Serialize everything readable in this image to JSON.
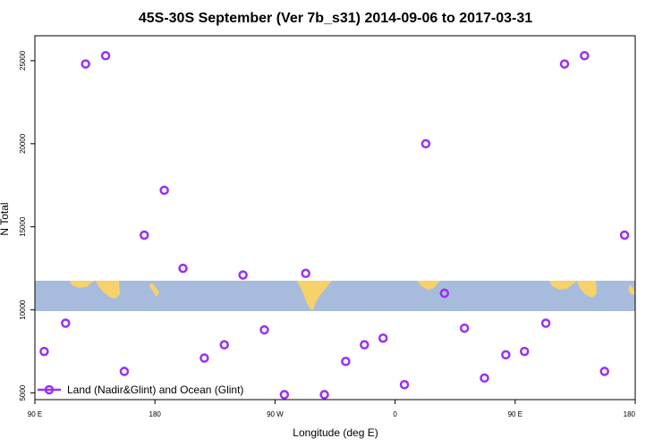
{
  "chart_data": {
    "type": "scatter",
    "title": "45S-30S September (Ver 7b_s31)   2014-09-06 to 2017-03-31",
    "xlabel": "Longitude (deg E)",
    "ylabel": "N Total",
    "x_ticks": [
      {
        "value": 90,
        "label": "90 E"
      },
      {
        "value": 180,
        "label": "180"
      },
      {
        "value": 270,
        "label": "90 W"
      },
      {
        "value": 360,
        "label": "0"
      },
      {
        "value": 450,
        "label": "90 E"
      },
      {
        "value": 540,
        "label": "180"
      }
    ],
    "y_ticks": [
      {
        "value": 5000,
        "label": "5000"
      },
      {
        "value": 10000,
        "label": "10000"
      },
      {
        "value": 15000,
        "label": "15000"
      },
      {
        "value": 20000,
        "label": "20000"
      },
      {
        "value": 25000,
        "label": "25000"
      }
    ],
    "xlim": [
      90,
      540
    ],
    "ylim": [
      4600,
      26500
    ],
    "series": [
      {
        "name": "Land (Nadir&Glint) and Ocean (Glint)",
        "color": "#9b30f0",
        "points": [
          {
            "x": 97,
            "y": 7500
          },
          {
            "x": 113,
            "y": 9200
          },
          {
            "x": 128,
            "y": 24800
          },
          {
            "x": 143,
            "y": 25300
          },
          {
            "x": 157,
            "y": 6300
          },
          {
            "x": 172,
            "y": 14500
          },
          {
            "x": 187,
            "y": 17200
          },
          {
            "x": 201,
            "y": 12500
          },
          {
            "x": 217,
            "y": 7100
          },
          {
            "x": 232,
            "y": 7900
          },
          {
            "x": 246,
            "y": 12100
          },
          {
            "x": 262,
            "y": 8800
          },
          {
            "x": 277,
            "y": 4900
          },
          {
            "x": 293,
            "y": 12200
          },
          {
            "x": 307,
            "y": 4900
          },
          {
            "x": 323,
            "y": 6900
          },
          {
            "x": 337,
            "y": 7900
          },
          {
            "x": 351,
            "y": 8300
          },
          {
            "x": 367,
            "y": 5500
          },
          {
            "x": 383,
            "y": 20000
          },
          {
            "x": 397,
            "y": 11000
          },
          {
            "x": 412,
            "y": 8900
          },
          {
            "x": 427,
            "y": 5900
          },
          {
            "x": 443,
            "y": 7300
          },
          {
            "x": 457,
            "y": 7500
          },
          {
            "x": 473,
            "y": 9200
          },
          {
            "x": 487,
            "y": 24800
          },
          {
            "x": 502,
            "y": 25300
          },
          {
            "x": 517,
            "y": 6300
          },
          {
            "x": 532,
            "y": 14500
          }
        ]
      }
    ],
    "legend": {
      "position": "bottom-left"
    },
    "grid": false,
    "colors": {
      "ocean": "#a7bcdc",
      "land": "#f7d26a",
      "marker": "#9b30f0"
    }
  }
}
